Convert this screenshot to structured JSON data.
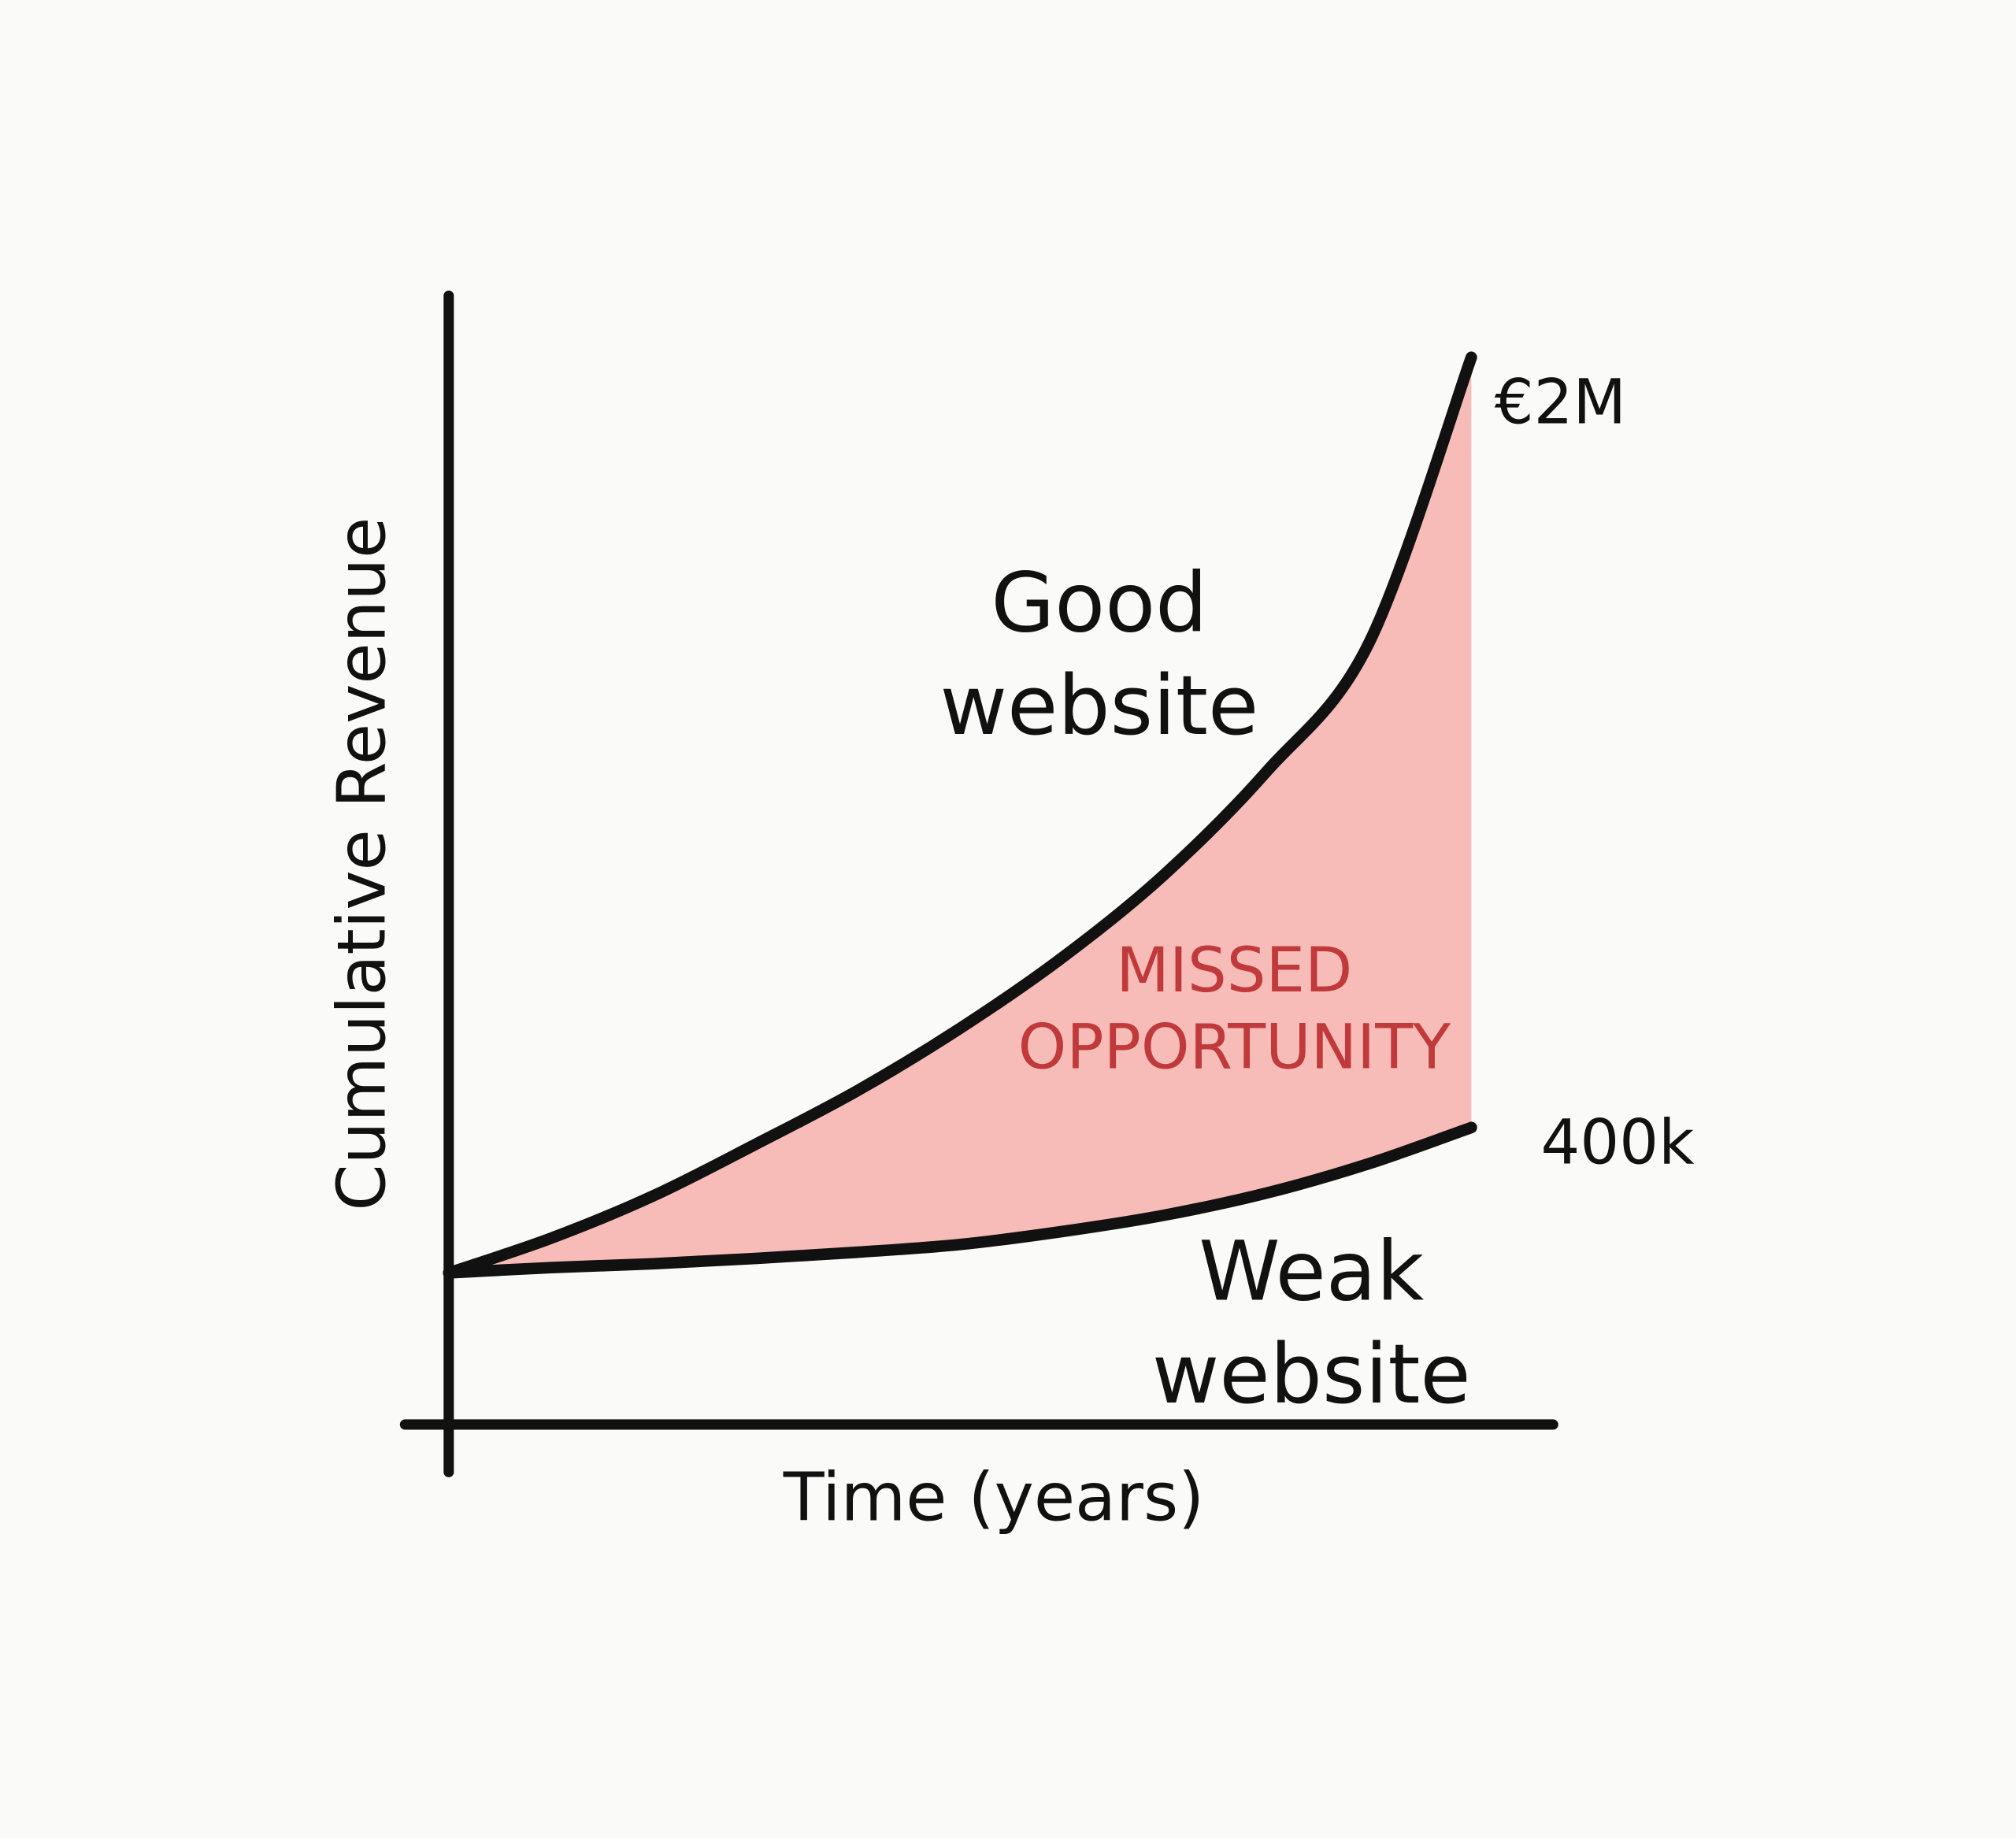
{
  "chart_data": {
    "type": "line",
    "xlabel": "Time (years)",
    "ylabel": "Cumulative Revenue",
    "x": [
      0,
      1,
      2,
      3,
      4,
      5,
      6,
      7,
      8,
      9,
      10
    ],
    "xlim": [
      0,
      10.8
    ],
    "ylim": [
      -217000,
      2128000
    ],
    "series": [
      {
        "name": "Good website",
        "color": "#111111",
        "values": [
          98000,
          170000,
          258000,
          365000,
          477000,
          606000,
          753000,
          926000,
          1140000,
          1407000,
          2000000
        ],
        "value_labels": [
          null,
          null,
          null,
          null,
          null,
          null,
          null,
          null,
          null,
          null,
          "€2M"
        ]
      },
      {
        "name": "Weak website",
        "color": "#111111",
        "values": [
          98000,
          109000,
          117000,
          128000,
          141000,
          157000,
          184000,
          218000,
          264000,
          325000,
          400000
        ],
        "value_labels": [
          null,
          null,
          null,
          null,
          null,
          null,
          null,
          null,
          null,
          null,
          "400k"
        ]
      }
    ],
    "fill_color": "#f8bcb8",
    "annotations": [
      {
        "text": "MISSED OPPORTUNITY",
        "color": "#c0393b"
      }
    ]
  }
}
